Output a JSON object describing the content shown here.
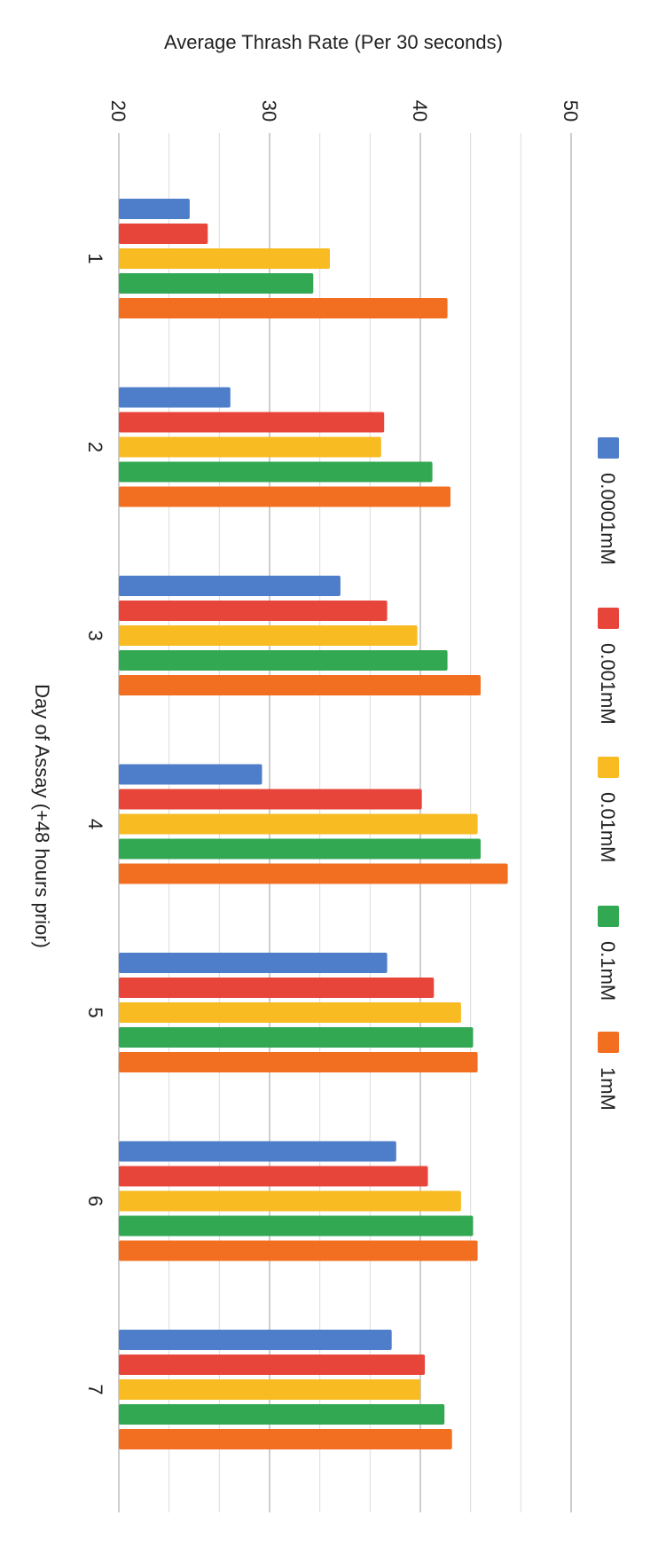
{
  "chart_data": {
    "type": "bar",
    "orientation": "horizontal",
    "title": "Average Thrash Rate (Per 30 seconds)",
    "xlabel": "Average Thrash Rate (Per 30 seconds)",
    "ylabel": "Day of Assay (+48 hours prior)",
    "categories": [
      "1",
      "2",
      "3",
      "4",
      "5",
      "6",
      "7"
    ],
    "value_axis": {
      "min": 20,
      "max": 50,
      "ticks": [
        "20",
        "30",
        "40",
        "50"
      ],
      "minor_step": 3.33
    },
    "series": [
      {
        "name": "0.0001mM",
        "color": "#4e7dc9",
        "values": [
          24.7,
          27.4,
          34.7,
          29.5,
          37.8,
          38.4,
          38.1
        ]
      },
      {
        "name": "0.001mM",
        "color": "#e8453a",
        "values": [
          25.9,
          37.6,
          37.8,
          40.1,
          40.9,
          40.5,
          40.3
        ]
      },
      {
        "name": "0.01mM",
        "color": "#f8bb22",
        "values": [
          34.0,
          37.4,
          39.8,
          43.8,
          42.7,
          42.7,
          40.0
        ]
      },
      {
        "name": "0.1mM",
        "color": "#33a853",
        "values": [
          32.9,
          40.8,
          41.8,
          44.0,
          43.5,
          43.5,
          41.6
        ]
      },
      {
        "name": "1mM",
        "color": "#f26f22",
        "values": [
          41.8,
          42.0,
          44.0,
          45.8,
          43.8,
          43.8,
          42.1
        ]
      }
    ],
    "legend_position": "right",
    "grid": true
  }
}
